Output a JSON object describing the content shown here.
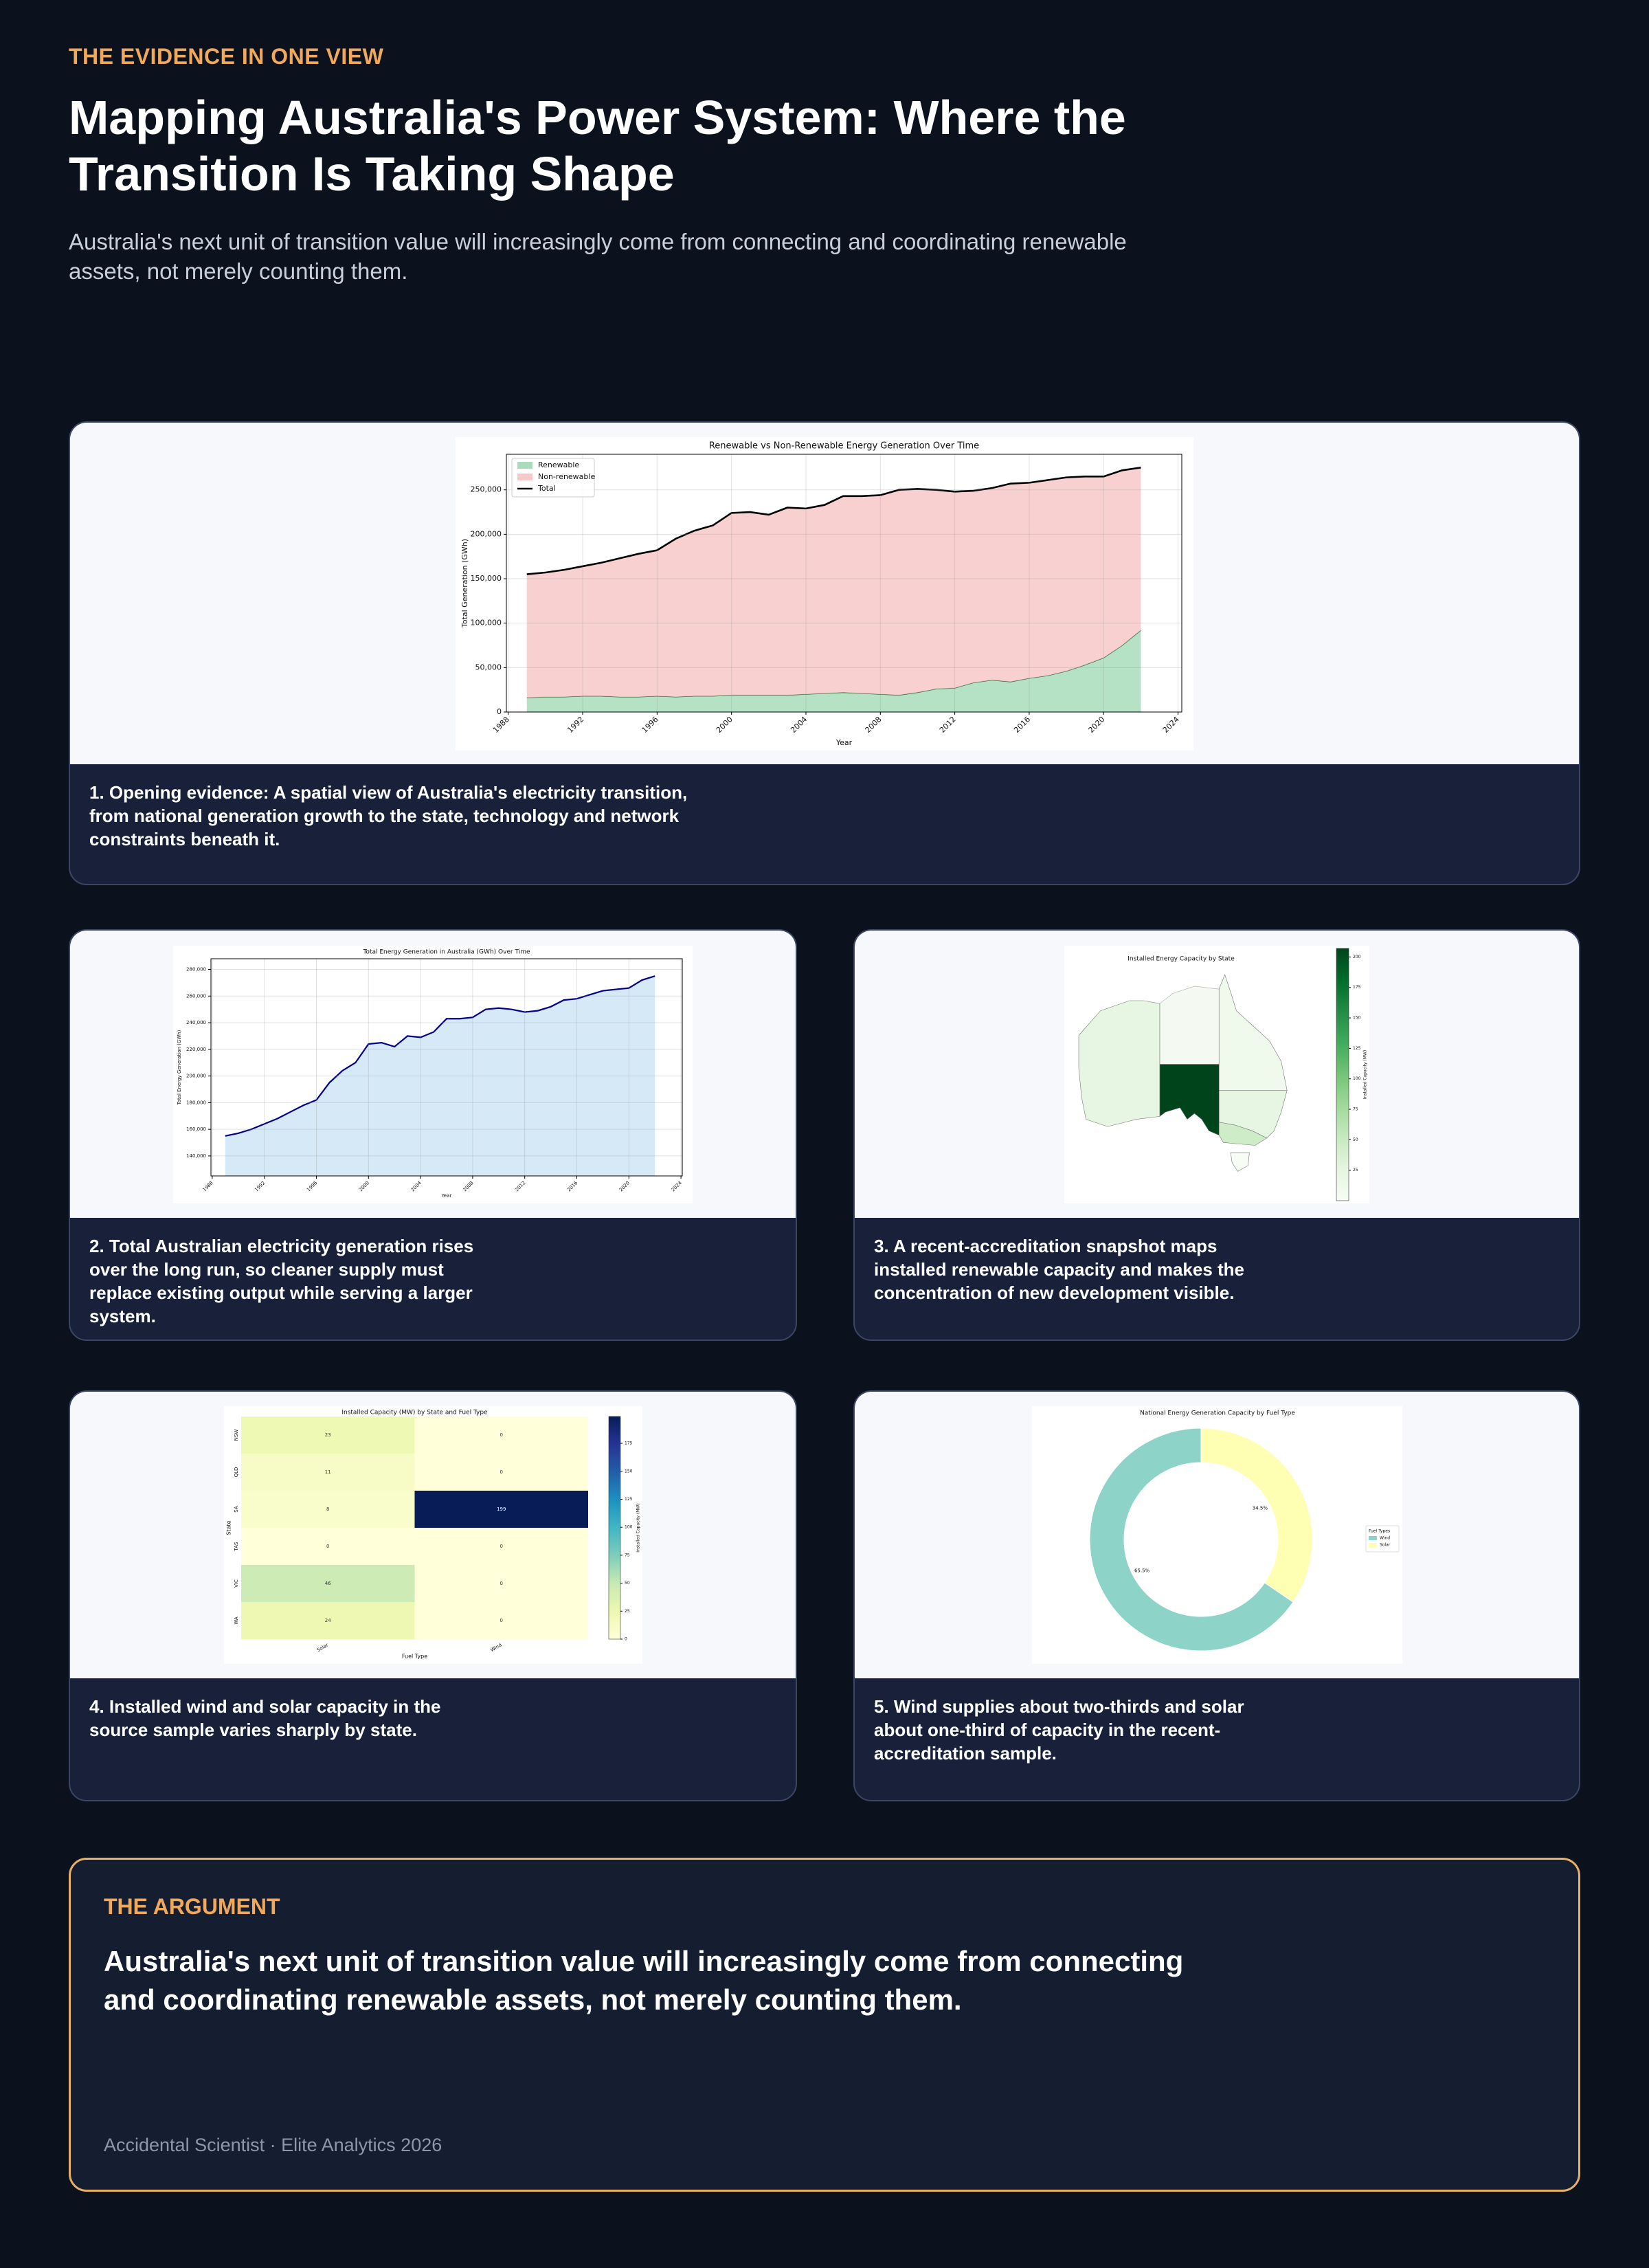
{
  "header": {
    "eyebrow": "THE EVIDENCE IN ONE VIEW",
    "title": "Mapping Australia's Power System: Where the Transition Is Taking Shape",
    "subtitle": "Australia's next unit of transition value will increasingly come from connecting and coordinating renewable assets, not merely counting them."
  },
  "cards": [
    {
      "caption": "1. Opening evidence: A spatial view of Australia's electricity transition, from national generation growth to the state, technology and network constraints beneath it.",
      "chart": {
        "type": "area",
        "title": "Renewable vs Non-Renewable Energy Generation Over Time",
        "x_label": "Year",
        "y_label": "Total Generation (GWh)",
        "x": [
          1989,
          1990,
          1991,
          1992,
          1993,
          1994,
          1995,
          1996,
          1997,
          1998,
          1999,
          2000,
          2001,
          2002,
          2003,
          2004,
          2005,
          2006,
          2007,
          2008,
          2009,
          2010,
          2011,
          2012,
          2013,
          2014,
          2015,
          2016,
          2017,
          2018,
          2019,
          2020,
          2021,
          2022
        ],
        "series": [
          {
            "name": "Renewable",
            "color": "#a8dcbb",
            "edge": "#2f6b3a",
            "values": [
              16000,
              17000,
              17000,
              18000,
              18000,
              17000,
              17000,
              18000,
              17000,
              18000,
              18000,
              19000,
              19000,
              19000,
              19000,
              20000,
              21000,
              22000,
              21000,
              20000,
              19000,
              22000,
              26000,
              27000,
              33000,
              36000,
              34000,
              38000,
              41000,
              46000,
              53000,
              61000,
              75000,
              92000
            ]
          },
          {
            "name": "Non-renewable",
            "color": "#f7c8c8",
            "values": [
              139000,
              140000,
              143000,
              146000,
              150000,
              156000,
              161000,
              164000,
              178000,
              186000,
              192000,
              205000,
              206000,
              203000,
              211000,
              209000,
              212000,
              221000,
              222000,
              224000,
              231000,
              229000,
              224000,
              221000,
              216000,
              216000,
              223000,
              220000,
              220000,
              218000,
              212000,
              204000,
              197000,
              183000
            ]
          }
        ],
        "total_line": {
          "name": "Total",
          "color": "#000000"
        },
        "xlim": [
          1987.9,
          2024.2
        ],
        "ylim": [
          0,
          290000
        ],
        "xticks": [
          1988,
          1992,
          1996,
          2000,
          2004,
          2008,
          2012,
          2016,
          2020,
          2024
        ],
        "yticks": [
          0,
          {
            "value": 50000,
            "label": "50,000"
          },
          {
            "value": 100000,
            "label": "100,000"
          },
          {
            "value": 150000,
            "label": "150,000"
          },
          {
            "value": 200000,
            "label": "200,000"
          },
          {
            "value": 250000,
            "label": "250,000"
          }
        ],
        "grid": true,
        "legend": "upper left"
      }
    },
    {
      "caption": "2. Total Australian electricity generation rises over the long run, so cleaner supply must replace existing output while serving a larger system.",
      "chart": {
        "type": "line",
        "title": "Total Energy Generation in Australia (GWh) Over Time",
        "x_label": "Year",
        "y_label": "Total Energy Generation (GWh)",
        "x": [
          1989,
          1990,
          1991,
          1992,
          1993,
          1994,
          1995,
          1996,
          1997,
          1998,
          1999,
          2000,
          2001,
          2002,
          2003,
          2004,
          2005,
          2006,
          2007,
          2008,
          2009,
          2010,
          2011,
          2012,
          2013,
          2014,
          2015,
          2016,
          2017,
          2018,
          2019,
          2020,
          2021,
          2022
        ],
        "values": [
          155000,
          157000,
          160000,
          164000,
          168000,
          173000,
          178000,
          182000,
          195000,
          204000,
          210000,
          224000,
          225000,
          222000,
          230000,
          229000,
          233000,
          243000,
          243000,
          244000,
          250000,
          251000,
          250000,
          248000,
          249000,
          252000,
          257000,
          258000,
          261000,
          264000,
          265000,
          266000,
          272000,
          275000
        ],
        "color": "#00008b",
        "fill": "#d5eaf6",
        "xlim": [
          1987.9,
          2024.1
        ],
        "ylim": [
          125000,
          288000
        ],
        "xticks": [
          1988,
          1992,
          1996,
          2000,
          2004,
          2008,
          2012,
          2016,
          2020,
          2024
        ],
        "yticks": [
          {
            "value": 140000,
            "label": "140,000"
          },
          {
            "value": 160000,
            "label": "160,000"
          },
          {
            "value": 180000,
            "label": "180,000"
          },
          {
            "value": 200000,
            "label": "200,000"
          },
          {
            "value": 220000,
            "label": "220,000"
          },
          {
            "value": 240000,
            "label": "240,000"
          },
          {
            "value": 260000,
            "label": "260,000"
          },
          {
            "value": 280000,
            "label": "280,000"
          }
        ],
        "grid": true
      }
    },
    {
      "caption": "3. A recent-accreditation snapshot maps installed renewable capacity and makes the concentration of new development visible.",
      "chart": {
        "type": "map",
        "title": "Installed Energy Capacity by State",
        "colorbar_label": "Installed Capacity (MW)",
        "values": [
          23,
          11,
          207,
          0,
          46,
          24
        ],
        "colors": [
          "#f7fcf5",
          "#e5f5e0",
          "#c7e9c0",
          "#a1d99b",
          "#74c476",
          "#41ab5d",
          "#238b45",
          "#006d2c",
          "#00441b"
        ],
        "clim": [
          0,
          207
        ],
        "cticks": [
          25,
          50,
          75,
          100,
          125,
          150,
          175,
          200
        ]
      }
    },
    {
      "caption": "4. Installed wind and solar capacity in the source sample varies sharply by state.",
      "chart": {
        "type": "heatmap",
        "title": "Installed Capacity (MW) by State and Fuel Type",
        "x_label": "Fuel Type",
        "y_label": "State",
        "colorbar_label": "Installed Capacity (MW)",
        "x_categories": [
          "Solar",
          "Wind"
        ],
        "y_categories": [
          "NSW",
          "QLD",
          "SA",
          "TAS",
          "VIC",
          "WA"
        ],
        "values": [
          [
            23,
            0
          ],
          [
            11,
            0
          ],
          [
            8,
            199
          ],
          [
            0,
            0
          ],
          [
            46,
            0
          ],
          [
            24,
            0
          ]
        ],
        "colors": [
          "#ffffd9",
          "#edf8b1",
          "#c7e9b4",
          "#7fcdbb",
          "#41b6c4",
          "#1d91c0",
          "#225ea8",
          "#253494",
          "#081d58"
        ],
        "clim": [
          0,
          199
        ],
        "cticks": [
          0,
          25,
          50,
          75,
          100,
          125,
          150,
          175
        ]
      }
    },
    {
      "caption": "5. Wind supplies about two-thirds and solar about one-third of capacity in the recent-accreditation sample.",
      "chart": {
        "type": "pie",
        "title": "National Energy Generation Capacity by Fuel Type",
        "donut": true,
        "categories": [
          "Wind",
          "Solar"
        ],
        "values": [
          65.5,
          34.5
        ],
        "value_labels": [
          "65.5%",
          "34.5%"
        ],
        "colors": [
          "#8dd3c7",
          "#ffffb3"
        ],
        "legend_title": "Fuel Types",
        "legend": "right"
      }
    }
  ],
  "argument": {
    "eyebrow": "THE ARGUMENT",
    "statement": "Australia's next unit of transition value will increasingly come from connecting and coordinating renewable assets, not merely counting them.",
    "footer": "Accidental Scientist · Elite Analytics 2026"
  }
}
